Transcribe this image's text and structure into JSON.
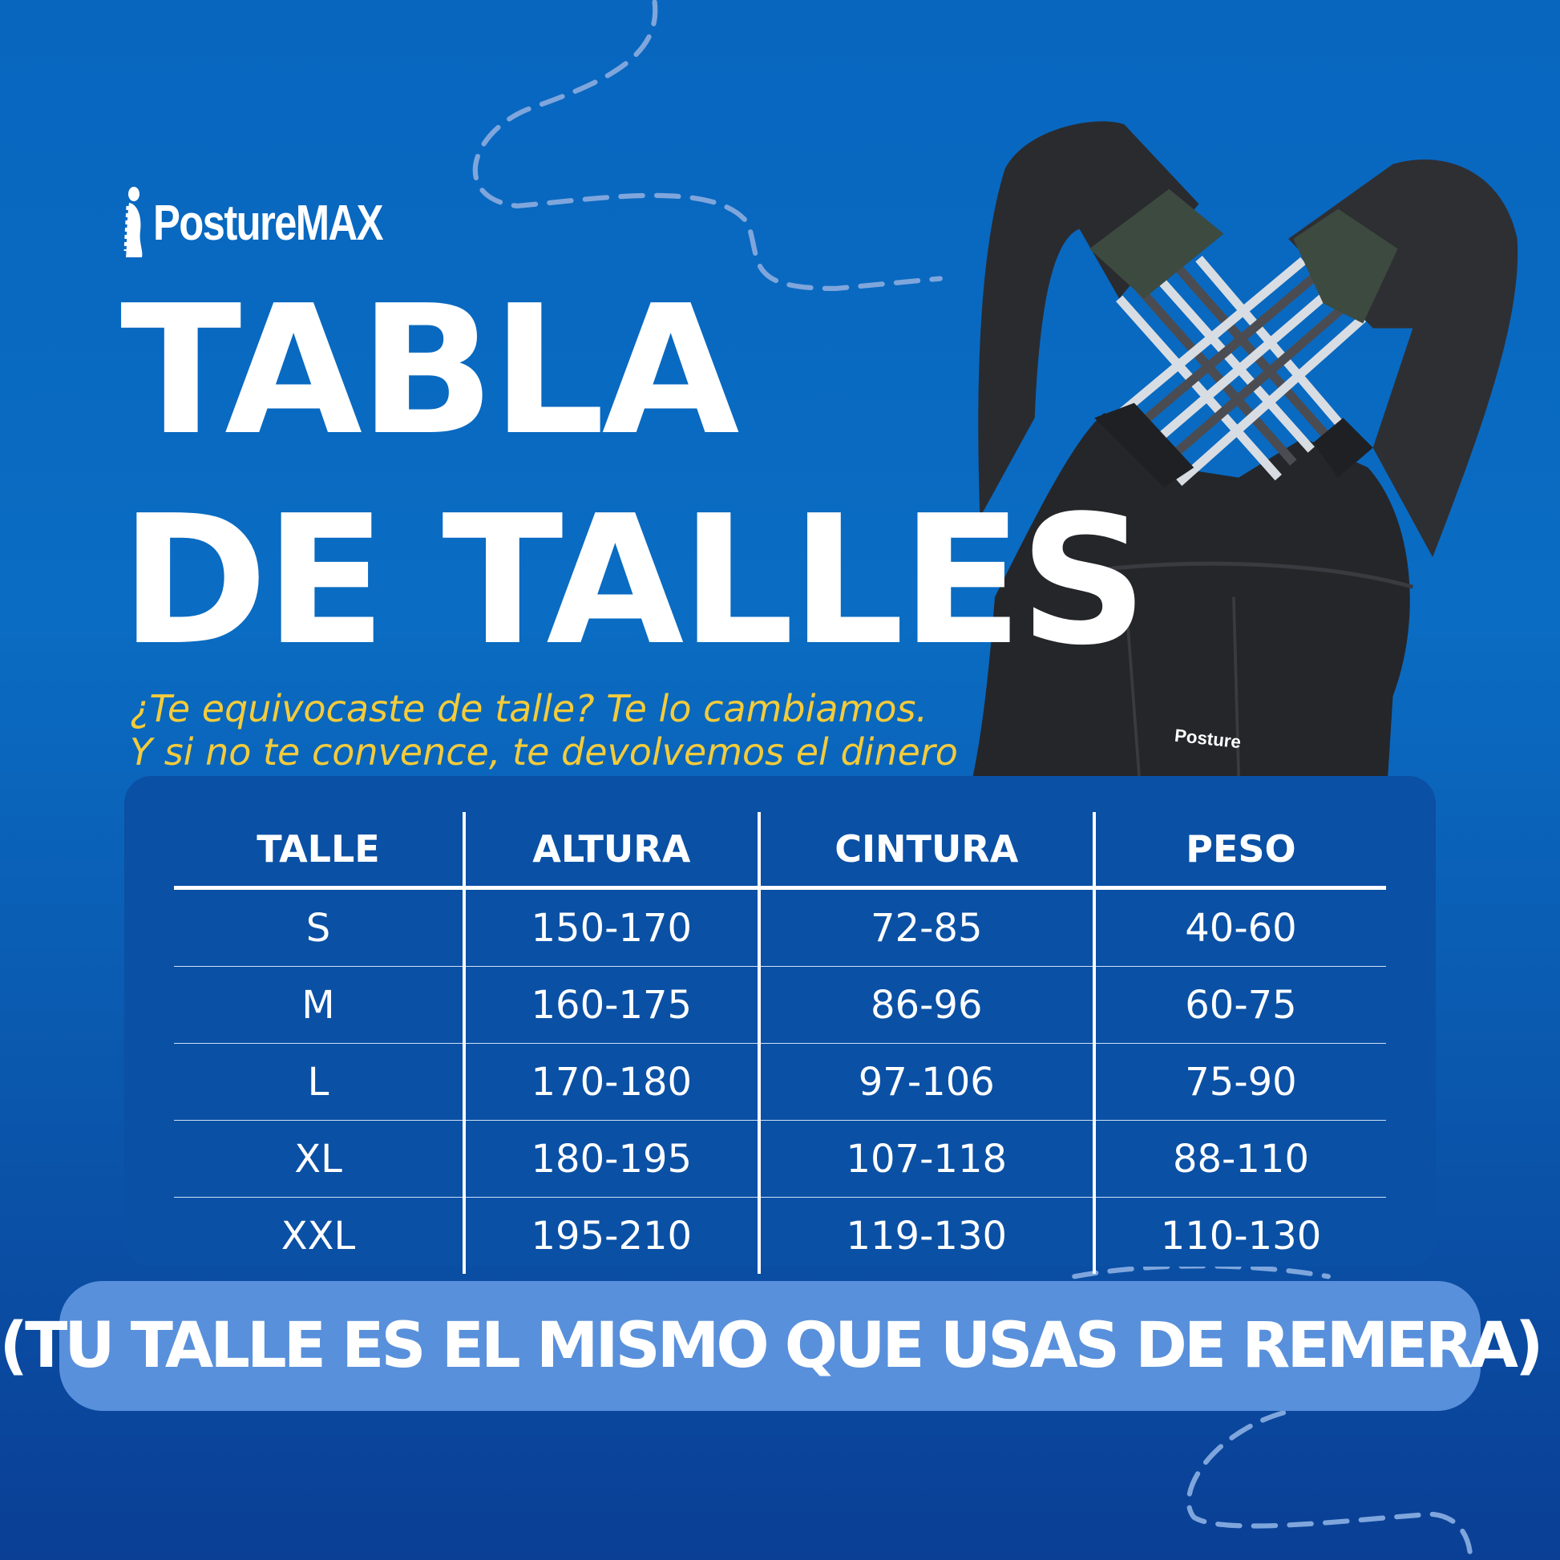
{
  "brand": {
    "name": "PostureMAX"
  },
  "title": {
    "line1": "TABLA",
    "line2": "DE TALLES"
  },
  "subtitle": {
    "line1": "¿Te equivocaste de talle? Te lo cambiamos.",
    "line2": "Y si no te convence, te devolvemos el dinero"
  },
  "product": {
    "label": "Posture"
  },
  "table": {
    "headers": [
      "TALLE",
      "ALTURA",
      "CINTURA",
      "PESO"
    ],
    "rows": [
      [
        "S",
        "150-170",
        "72-85",
        "40-60"
      ],
      [
        "M",
        "160-175",
        "86-96",
        "60-75"
      ],
      [
        "L",
        "170-180",
        "97-106",
        "75-90"
      ],
      [
        "XL",
        "180-195",
        "107-118",
        "88-110"
      ],
      [
        "XXL",
        "195-210",
        "119-130",
        "110-130"
      ]
    ]
  },
  "note": "(TU TALLE ES EL MISMO QUE USAS DE REMERA)",
  "colors": {
    "background": "#0866bf",
    "panel": "#0a50a5",
    "banner": "#5990db",
    "accent": "#f3cb3b"
  },
  "icons": {
    "logo": "posture-figure-icon"
  }
}
